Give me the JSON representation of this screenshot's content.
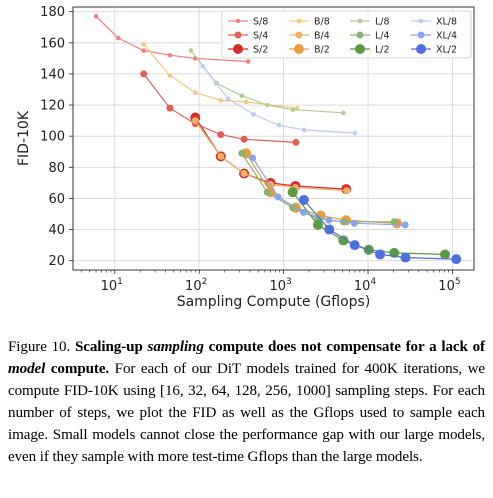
{
  "chart_data": {
    "type": "scatter",
    "xlabel": "Sampling Compute (Gflops)",
    "ylabel": "FID-10K",
    "x_scale": "log",
    "xlim": [
      3.2,
      180000
    ],
    "ylim": [
      14,
      183
    ],
    "x_ticks": [
      {
        "value": 10,
        "base": "10",
        "exp": "1"
      },
      {
        "value": 100,
        "base": "10",
        "exp": "2"
      },
      {
        "value": 1000,
        "base": "10",
        "exp": "3"
      },
      {
        "value": 10000,
        "base": "10",
        "exp": "4"
      },
      {
        "value": 100000,
        "base": "10",
        "exp": "5"
      }
    ],
    "y_ticks": [
      20,
      40,
      60,
      80,
      100,
      120,
      140,
      160,
      180
    ],
    "grid": true,
    "legend_position": "top-right",
    "series": [
      {
        "name": "S/8",
        "color": "#f08080",
        "size": "small",
        "points": [
          [
            6,
            177
          ],
          [
            11,
            163
          ],
          [
            22,
            155
          ],
          [
            45,
            152
          ],
          [
            90,
            150
          ],
          [
            380,
            148
          ]
        ]
      },
      {
        "name": "S/4",
        "color": "#e06055",
        "size": "medium",
        "points": [
          [
            22,
            140
          ],
          [
            45,
            118
          ],
          [
            90,
            108
          ],
          [
            180,
            101
          ],
          [
            340,
            98
          ],
          [
            1400,
            96
          ]
        ]
      },
      {
        "name": "S/2",
        "color": "#d62c2c",
        "size": "large",
        "points": [
          [
            90,
            112
          ],
          [
            180,
            87
          ],
          [
            340,
            76
          ],
          [
            700,
            70
          ],
          [
            1380,
            68
          ],
          [
            5500,
            66
          ]
        ]
      },
      {
        "name": "B/8",
        "color": "#f5c880",
        "size": "small",
        "points": [
          [
            22,
            159
          ],
          [
            45,
            139
          ],
          [
            90,
            128
          ],
          [
            180,
            123
          ],
          [
            360,
            122
          ],
          [
            1450,
            118
          ]
        ]
      },
      {
        "name": "B/4",
        "color": "#f0b060",
        "size": "medium",
        "points": [
          [
            90,
            110
          ],
          [
            180,
            87
          ],
          [
            340,
            76
          ],
          [
            700,
            69
          ],
          [
            1380,
            67
          ],
          [
            5600,
            65
          ]
        ]
      },
      {
        "name": "B/2",
        "color": "#e89b40",
        "size": "large",
        "points": [
          [
            360,
            89
          ],
          [
            700,
            64
          ],
          [
            1400,
            54
          ],
          [
            2750,
            49
          ],
          [
            5500,
            46
          ],
          [
            22000,
            44
          ]
        ]
      },
      {
        "name": "L/8",
        "color": "#b3cc99",
        "size": "small",
        "points": [
          [
            80,
            155
          ],
          [
            160,
            134
          ],
          [
            320,
            126
          ],
          [
            640,
            120
          ],
          [
            1280,
            117
          ],
          [
            5100,
            115
          ]
        ]
      },
      {
        "name": "L/4",
        "color": "#8ab36f",
        "size": "medium",
        "points": [
          [
            320,
            89
          ],
          [
            640,
            64
          ],
          [
            1280,
            54
          ],
          [
            2560,
            47
          ],
          [
            5100,
            45
          ],
          [
            20500,
            45
          ]
        ]
      },
      {
        "name": "L/2",
        "color": "#5d9a45",
        "size": "large",
        "points": [
          [
            1280,
            64
          ],
          [
            2550,
            43
          ],
          [
            5100,
            33
          ],
          [
            10200,
            27
          ],
          [
            20400,
            25
          ],
          [
            81600,
            24
          ]
        ]
      },
      {
        "name": "XL/8",
        "color": "#bccbf5",
        "size": "small",
        "points": [
          [
            110,
            145
          ],
          [
            220,
            124
          ],
          [
            440,
            114
          ],
          [
            880,
            107
          ],
          [
            1750,
            104
          ],
          [
            7000,
            102
          ]
        ]
      },
      {
        "name": "XL/4",
        "color": "#8aa3ea",
        "size": "medium",
        "points": [
          [
            430,
            86
          ],
          [
            860,
            61
          ],
          [
            1720,
            51
          ],
          [
            3450,
            46
          ],
          [
            6900,
            44
          ],
          [
            27500,
            43
          ]
        ]
      },
      {
        "name": "XL/2",
        "color": "#4f6fe0",
        "size": "large",
        "points": [
          [
            1740,
            59
          ],
          [
            3480,
            40
          ],
          [
            6950,
            30
          ],
          [
            13900,
            24
          ],
          [
            27800,
            22
          ],
          [
            111000,
            21
          ]
        ]
      }
    ]
  },
  "caption": {
    "figure_label": "Figure 10.",
    "bold_part1": "Scaling-up ",
    "bold_italic1": "sampling",
    "bold_part2": " compute does not compensate for a lack of ",
    "bold_italic2": "model",
    "bold_part3": " compute.",
    "body": "For each of our DiT models trained for 400K iterations, we compute FID-10K using [16, 32, 64, 128, 256, 1000] sampling steps. For each number of steps, we plot the FID as well as the Gflops used to sample each image. Small models cannot close the performance gap with our large models, even if they sample with more test-time Gflops than the large models."
  }
}
